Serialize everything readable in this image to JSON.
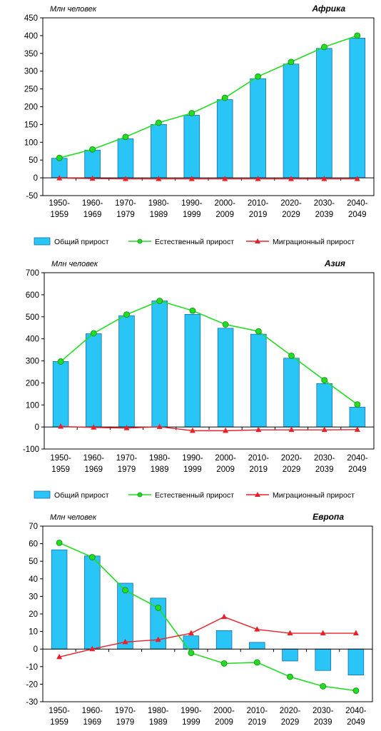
{
  "charts": [
    {
      "type": "bar+line",
      "title": "Африка",
      "ylabel": "Млн человек",
      "ylim": [
        -50,
        450
      ],
      "ytick_step": 50,
      "ytick_labels": [
        "-50",
        "0",
        "50",
        "100",
        "150",
        "200",
        "250",
        "300",
        "350",
        "400",
        "450"
      ],
      "categories": [
        {
          "top": "1950-",
          "bottom": "1959"
        },
        {
          "top": "1960-",
          "bottom": "1969"
        },
        {
          "top": "1970-",
          "bottom": "1979"
        },
        {
          "top": "1980-",
          "bottom": "1989"
        },
        {
          "top": "1990-",
          "bottom": "1999"
        },
        {
          "top": "2000-",
          "bottom": "2009"
        },
        {
          "top": "2010-",
          "bottom": "2019"
        },
        {
          "top": "2020-",
          "bottom": "2029"
        },
        {
          "top": "2030-",
          "bottom": "2039"
        },
        {
          "top": "2040-",
          "bottom": "2049"
        }
      ],
      "series": [
        {
          "name": "Общий прирост",
          "kind": "bar",
          "values": [
            55,
            78,
            110,
            150,
            176,
            220,
            279,
            320,
            364,
            393
          ]
        },
        {
          "name": "Естественный прирост",
          "kind": "line",
          "values": [
            56,
            80,
            115,
            155,
            182,
            225,
            285,
            326,
            368,
            400
          ]
        },
        {
          "name": "Миграционный прирост",
          "kind": "line",
          "values": [
            -1,
            -2,
            -3,
            -3,
            -3,
            -3,
            -3,
            -3,
            -3,
            -3
          ]
        }
      ]
    },
    {
      "type": "bar+line",
      "title": "Азия",
      "ylabel": "Млн человек",
      "ylim": [
        -100,
        700
      ],
      "ytick_step": 100,
      "ytick_labels": [
        "-100",
        "0",
        "100",
        "200",
        "300",
        "400",
        "500",
        "600",
        "700"
      ],
      "categories": [
        {
          "top": "1950-",
          "bottom": "1959"
        },
        {
          "top": "1960-",
          "bottom": "1969"
        },
        {
          "top": "1970-",
          "bottom": "1979"
        },
        {
          "top": "1980-",
          "bottom": "1989"
        },
        {
          "top": "1990-",
          "bottom": "1999"
        },
        {
          "top": "2000-",
          "bottom": "2009"
        },
        {
          "top": "2010-",
          "bottom": "2019"
        },
        {
          "top": "2020-",
          "bottom": "2029"
        },
        {
          "top": "2030-",
          "bottom": "2039"
        },
        {
          "top": "2040-",
          "bottom": "2049"
        }
      ],
      "series": [
        {
          "name": "Общий прирост",
          "kind": "bar",
          "values": [
            297,
            423,
            505,
            572,
            511,
            448,
            421,
            312,
            197,
            90
          ]
        },
        {
          "name": "Естественный прирост",
          "kind": "line",
          "values": [
            297,
            425,
            510,
            572,
            528,
            465,
            434,
            323,
            212,
            102
          ]
        },
        {
          "name": "Миграционный прирост",
          "kind": "line",
          "values": [
            2,
            -2,
            -5,
            1,
            -17,
            -17,
            -13,
            -13,
            -13,
            -12
          ]
        }
      ]
    },
    {
      "type": "bar+line",
      "title": "Европа",
      "ylabel": "Млн человек",
      "ylim": [
        -30,
        70
      ],
      "ytick_step": 10,
      "ytick_labels": [
        "-30",
        "-20",
        "-10",
        "0",
        "10",
        "20",
        "30",
        "40",
        "50",
        "60",
        "70"
      ],
      "categories": [
        {
          "top": "1950-",
          "bottom": "1959"
        },
        {
          "top": "1960-",
          "bottom": "1969"
        },
        {
          "top": "1970-",
          "bottom": "1979"
        },
        {
          "top": "1980-",
          "bottom": "1989"
        },
        {
          "top": "1990-",
          "bottom": "1999"
        },
        {
          "top": "2000-",
          "bottom": "2009"
        },
        {
          "top": "2010-",
          "bottom": "2019"
        },
        {
          "top": "2020-",
          "bottom": "2029"
        },
        {
          "top": "2030-",
          "bottom": "2039"
        },
        {
          "top": "2040-",
          "bottom": "2049"
        }
      ],
      "series": [
        {
          "name": "Общий прирост",
          "kind": "bar",
          "values": [
            56.5,
            53,
            37.5,
            29,
            7.5,
            10.5,
            3.8,
            -6.8,
            -12.2,
            -14.8
          ]
        },
        {
          "name": "Естественный прирост",
          "kind": "line",
          "values": [
            60.5,
            52.3,
            33.5,
            23.5,
            -2.2,
            -8.2,
            -7.6,
            -15.8,
            -21.2,
            -23.7
          ]
        },
        {
          "name": "Миграционный прирост",
          "kind": "line",
          "values": [
            -4.5,
            0,
            4,
            5.3,
            9,
            18.3,
            11.2,
            9,
            9,
            9
          ]
        }
      ]
    }
  ],
  "legend": {
    "bar_label": "Общий прирост",
    "natural_label": "Естественный прирост",
    "migration_label": "Миграционный прирост"
  },
  "colors": {
    "bar_fill": "#29C5F6",
    "bar_stroke": "#1A6FA8",
    "natural": "#22DD22",
    "natural_marker_stroke": "#118811",
    "migration": "#E8202A",
    "axis": "#000000"
  }
}
